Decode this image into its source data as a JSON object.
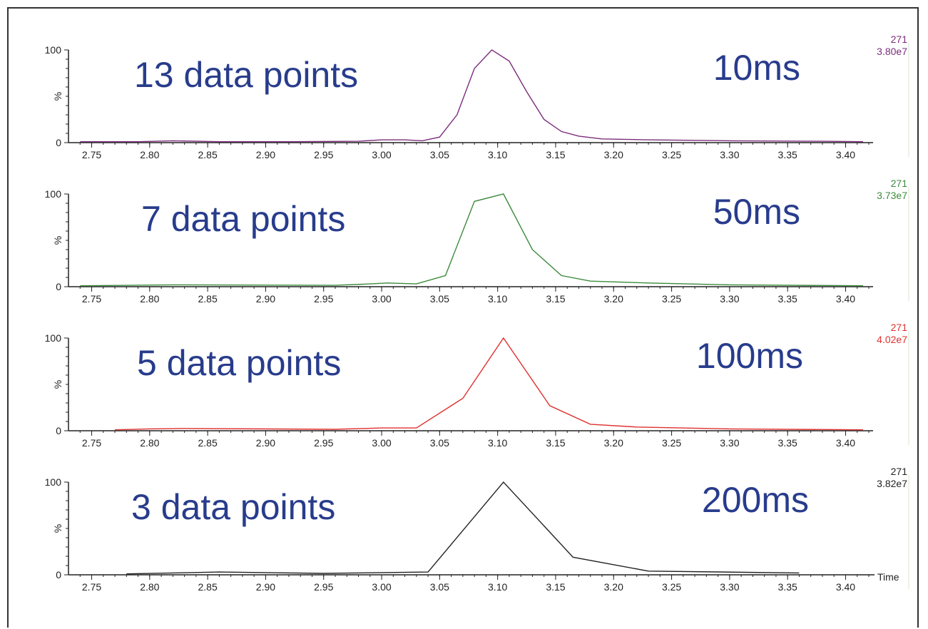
{
  "colors": {
    "heading": "#283c8c",
    "axis": "#222222"
  },
  "chart_data": [
    {
      "type": "line",
      "annotation": "13 data points",
      "scan_time": "10ms",
      "mass": "271",
      "intensity": "3.80e7",
      "color": "#7b2d7b",
      "xlim": [
        2.73,
        3.42
      ],
      "ylim": [
        0,
        100
      ],
      "x_ticks": [
        "2.75",
        "2.80",
        "2.85",
        "2.90",
        "2.95",
        "3.00",
        "3.05",
        "3.10",
        "3.15",
        "3.20",
        "3.25",
        "3.30",
        "3.35",
        "3.40"
      ],
      "y_ticks": [
        "100",
        "0"
      ],
      "ylabel": "%",
      "xlabel": "",
      "x": [
        2.74,
        2.79,
        2.82,
        2.86,
        2.92,
        2.98,
        3.0,
        3.02,
        3.035,
        3.05,
        3.065,
        3.08,
        3.095,
        3.11,
        3.125,
        3.14,
        3.155,
        3.17,
        3.19,
        3.23,
        3.3,
        3.38,
        3.415
      ],
      "y": [
        1,
        1,
        2,
        1,
        1,
        1.5,
        3,
        3,
        2,
        6,
        30,
        80,
        100,
        88,
        55,
        25,
        12,
        7,
        4,
        3,
        2,
        1.5,
        1
      ]
    },
    {
      "type": "line",
      "annotation": "7 data points",
      "scan_time": "50ms",
      "mass": "271",
      "intensity": "3.73e7",
      "color": "#3c8a3c",
      "xlim": [
        2.73,
        3.42
      ],
      "ylim": [
        0,
        100
      ],
      "x_ticks": [
        "2.75",
        "2.80",
        "2.85",
        "2.90",
        "2.95",
        "3.00",
        "3.05",
        "3.10",
        "3.15",
        "3.20",
        "3.25",
        "3.30",
        "3.35",
        "3.40"
      ],
      "y_ticks": [
        "100",
        "0"
      ],
      "ylabel": "%",
      "xlabel": "",
      "x": [
        2.74,
        2.82,
        2.96,
        2.99,
        3.005,
        3.03,
        3.055,
        3.08,
        3.105,
        3.13,
        3.155,
        3.18,
        3.23,
        3.3,
        3.415
      ],
      "y": [
        1,
        2,
        1.5,
        3,
        4,
        3,
        12,
        92,
        100,
        40,
        12,
        6,
        4,
        2,
        1
      ]
    },
    {
      "type": "line",
      "annotation": "5 data points",
      "scan_time": "100ms",
      "mass": "271",
      "intensity": "4.02e7",
      "color": "#e03030",
      "xlim": [
        2.73,
        3.42
      ],
      "ylim": [
        0,
        100
      ],
      "x_ticks": [
        "2.75",
        "2.80",
        "2.85",
        "2.90",
        "2.95",
        "3.00",
        "3.05",
        "3.10",
        "3.15",
        "3.20",
        "3.25",
        "3.30",
        "3.35",
        "3.40"
      ],
      "y_ticks": [
        "100",
        "0"
      ],
      "ylabel": "%",
      "xlabel": "",
      "x": [
        2.77,
        2.8,
        2.83,
        2.96,
        3.0,
        3.03,
        3.07,
        3.105,
        3.145,
        3.18,
        3.22,
        3.3,
        3.415
      ],
      "y": [
        1,
        2,
        2.5,
        1.5,
        3,
        3,
        35,
        100,
        27,
        7,
        4,
        2,
        1
      ]
    },
    {
      "type": "line",
      "annotation": "3 data points",
      "scan_time": "200ms",
      "mass": "271",
      "intensity": "3.82e7",
      "color": "#222222",
      "xlim": [
        2.73,
        3.42
      ],
      "ylim": [
        0,
        100
      ],
      "x_ticks": [
        "2.75",
        "2.80",
        "2.85",
        "2.90",
        "2.95",
        "3.00",
        "3.05",
        "3.10",
        "3.15",
        "3.20",
        "3.25",
        "3.30",
        "3.35",
        "3.40"
      ],
      "y_ticks": [
        "100",
        "0"
      ],
      "ylabel": "%",
      "xlabel": "Time",
      "x": [
        2.78,
        2.86,
        2.95,
        3.04,
        3.105,
        3.165,
        3.23,
        3.36
      ],
      "y": [
        1,
        3,
        1.5,
        3,
        100,
        19,
        4,
        2
      ]
    }
  ]
}
